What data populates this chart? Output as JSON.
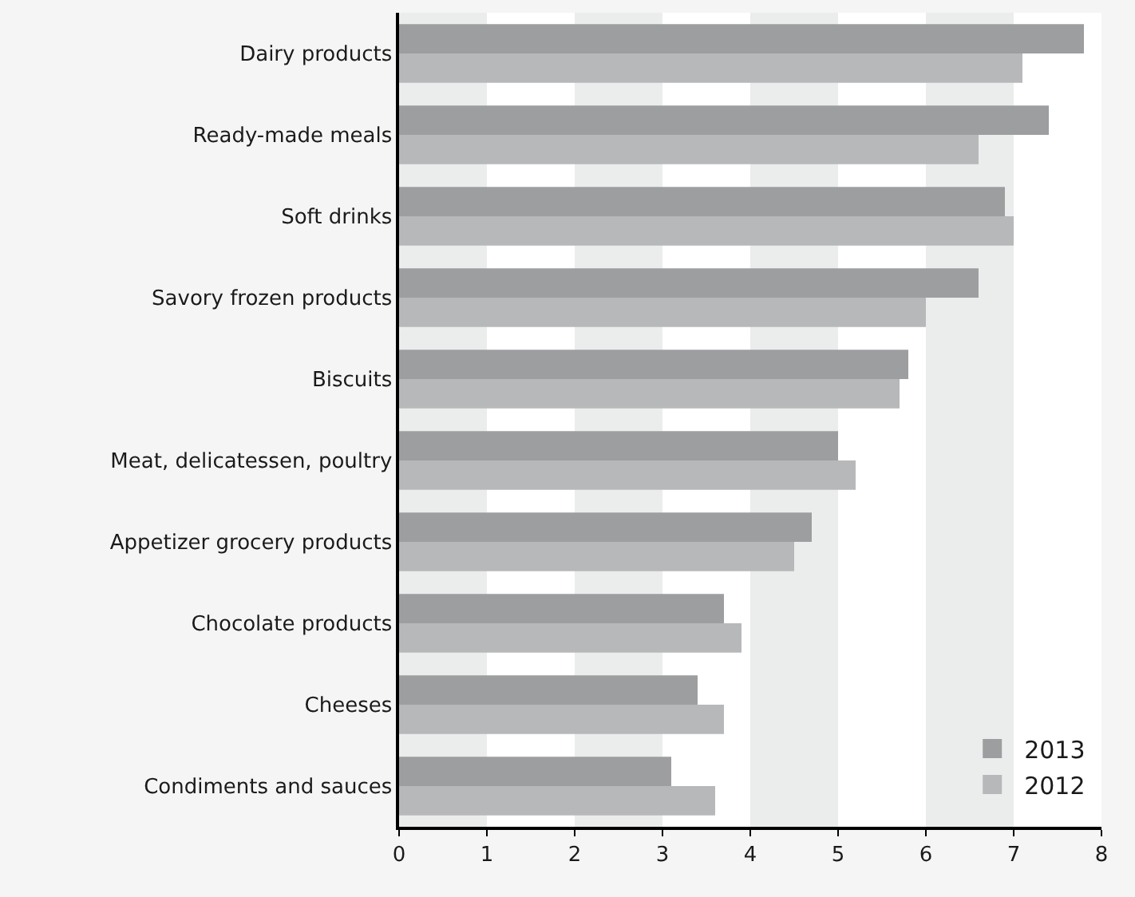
{
  "chart_data": {
    "type": "bar",
    "orientation": "horizontal",
    "categories": [
      "Dairy products",
      "Ready-made meals",
      "Soft drinks",
      "Savory frozen products",
      "Biscuits",
      "Meat, delicatessen, poultry",
      "Appetizer grocery products",
      "Chocolate products",
      "Cheeses",
      "Condiments and sauces"
    ],
    "series": [
      {
        "name": "2013",
        "color": "#9d9ea0",
        "values": [
          7.8,
          7.4,
          6.9,
          6.6,
          5.8,
          5.0,
          4.7,
          3.7,
          3.4,
          3.1
        ]
      },
      {
        "name": "2012",
        "color": "#b7b8ba",
        "values": [
          7.1,
          6.6,
          7.0,
          6.0,
          5.7,
          5.2,
          4.5,
          3.9,
          3.7,
          3.6
        ]
      }
    ],
    "xlim": [
      0,
      8
    ],
    "xticks": [
      0,
      1,
      2,
      3,
      4,
      5,
      6,
      7,
      8
    ],
    "bands": [
      {
        "axis": "x",
        "from": 0,
        "to": 1,
        "color": "#ebeded"
      },
      {
        "axis": "x",
        "from": 2,
        "to": 3,
        "color": "#ebeded"
      },
      {
        "axis": "x",
        "from": 4,
        "to": 5,
        "color": "#ebeded"
      },
      {
        "axis": "x",
        "from": 6,
        "to": 7,
        "color": "#ebeded"
      }
    ],
    "legend": "bottom right",
    "grid": false
  }
}
